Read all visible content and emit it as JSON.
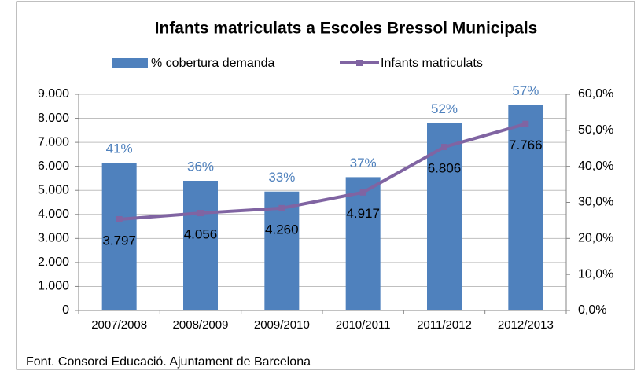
{
  "chart_data": {
    "type": "bar",
    "title": "Infants matriculats a Escoles Bressol Municipals",
    "categories": [
      "2007/2008",
      "2008/2009",
      "2009/2010",
      "2010/2011",
      "2011/2012",
      "2012/2013"
    ],
    "series": [
      {
        "name": "% cobertura demanda",
        "type": "bar",
        "axis": "y2",
        "color": "#4f81bd",
        "label_color": "#4f81bd",
        "values": [
          41,
          36,
          33,
          37,
          52,
          57
        ],
        "value_labels": [
          "41%",
          "36%",
          "33%",
          "37%",
          "52%",
          "57%"
        ]
      },
      {
        "name": "Infants matriculats",
        "type": "line",
        "axis": "y",
        "color": "#8064a2",
        "label_color": "#000000",
        "values": [
          3797,
          4056,
          4260,
          4917,
          6806,
          7766
        ],
        "value_labels": [
          "3.797",
          "4.056",
          "4.260",
          "4.917",
          "6.806",
          "7.766"
        ]
      }
    ],
    "ylim": [
      0,
      9000
    ],
    "yticks": [
      0,
      {
        "value": 1000,
        "label": "1.000"
      },
      {
        "value": 2000,
        "label": "2.000"
      },
      {
        "value": 3000,
        "label": "3.000"
      },
      {
        "value": 4000,
        "label": "4.000"
      },
      {
        "value": 5000,
        "label": "5.000"
      },
      {
        "value": 6000,
        "label": "6.000"
      },
      {
        "value": 7000,
        "label": "7.000"
      },
      {
        "value": 8000,
        "label": "8.000"
      },
      {
        "value": 9000,
        "label": "9.000"
      }
    ],
    "y2lim": [
      0,
      60
    ],
    "y2ticks": [
      {
        "value": 0,
        "label": "0,0%"
      },
      {
        "value": 10,
        "label": "10,0%"
      },
      {
        "value": 20,
        "label": "20,0%"
      },
      {
        "value": 30,
        "label": "30,0%"
      },
      {
        "value": 40,
        "label": "40,0%"
      },
      {
        "value": 50,
        "label": "50,0%"
      },
      {
        "value": 60,
        "label": "60,0%"
      }
    ],
    "grid": true,
    "legend": "top",
    "source": "Font. Consorci Educació. Ajuntament de Barcelona"
  }
}
